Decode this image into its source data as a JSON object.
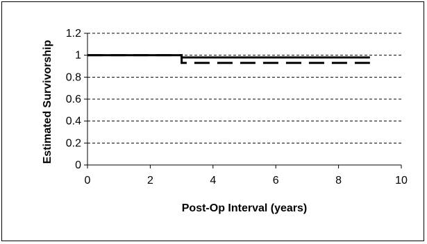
{
  "chart_data": {
    "type": "line",
    "title": "",
    "xlabel": "Post-Op Interval (years)",
    "ylabel": "Estimated Survivorship",
    "xlim": [
      0,
      10
    ],
    "ylim": [
      0,
      1.2
    ],
    "x_ticks": [
      "0",
      "2",
      "4",
      "6",
      "8",
      "10"
    ],
    "y_ticks": [
      "0",
      "0.2",
      "0.4",
      "0.6",
      "0.8",
      "1",
      "1.2"
    ],
    "grid": "horizontal-dashed",
    "legend": "none",
    "step": true,
    "series": [
      {
        "style": "solid",
        "color": "#000000",
        "x": [
          0,
          3,
          3,
          9
        ],
        "y": [
          1.0,
          1.0,
          0.98,
          0.98
        ]
      },
      {
        "style": "dashed",
        "color": "#000000",
        "x": [
          0,
          3,
          3,
          9
        ],
        "y": [
          1.0,
          1.0,
          0.93,
          0.93
        ]
      }
    ]
  }
}
